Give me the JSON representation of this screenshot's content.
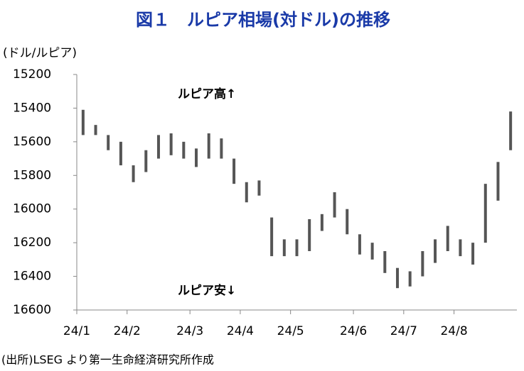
{
  "chart_data": {
    "type": "range",
    "title": "図１　ルピア相場(対ドル)の推移",
    "y_label": "(ドル/ルピア)",
    "annotations": [
      "ルピア高↑",
      "ルピア安↓"
    ],
    "source": "(出所)LSEG より第一生命経済研究所作成",
    "categories": [
      "24/1",
      null,
      null,
      null,
      "24/2",
      null,
      null,
      null,
      null,
      "24/3",
      null,
      null,
      null,
      "24/4",
      null,
      null,
      null,
      "24/5",
      null,
      null,
      null,
      null,
      "24/6",
      null,
      null,
      null,
      "24/7",
      null,
      null,
      null,
      "24/8",
      null,
      null,
      null,
      null
    ],
    "low": [
      15410,
      15500,
      15560,
      15600,
      15740,
      15650,
      15560,
      15550,
      15600,
      15640,
      15550,
      15580,
      15700,
      15840,
      15830,
      16050,
      16180,
      16180,
      16060,
      16030,
      15900,
      16000,
      16150,
      16200,
      16250,
      16350,
      16370,
      16250,
      16180,
      16100,
      16180,
      16200,
      15850,
      15720,
      15420
    ],
    "high": [
      15560,
      15560,
      15650,
      15740,
      15840,
      15780,
      15700,
      15680,
      15700,
      15750,
      15700,
      15700,
      15850,
      15960,
      15920,
      16280,
      16280,
      16280,
      16250,
      16130,
      16050,
      16150,
      16270,
      16300,
      16380,
      16470,
      16460,
      16400,
      16320,
      16250,
      16280,
      16330,
      16200,
      15950,
      15650
    ],
    "color": "#555555",
    "ylim": [
      15200,
      16600
    ],
    "yticks": [
      15200,
      15400,
      15600,
      15800,
      16000,
      16200,
      16400,
      16600
    ],
    "y_inverted": true,
    "grid": false
  }
}
